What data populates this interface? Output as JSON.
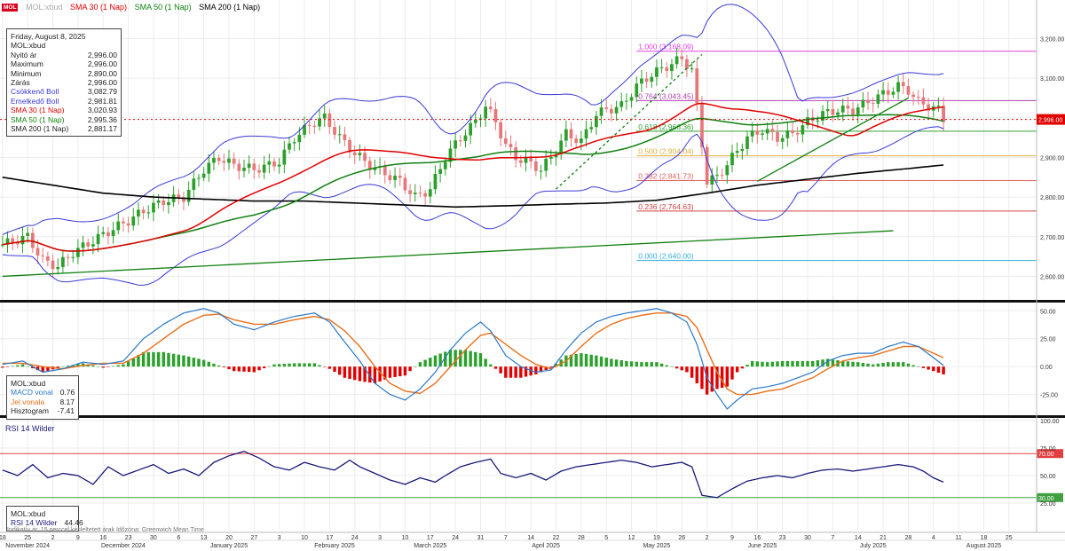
{
  "colors": {
    "up": "#2ca02c",
    "down": "#e8777a",
    "sma30": "#e00000",
    "sma50": "#108010",
    "sma200": "#000000",
    "bollinger": "#3a3ad8",
    "fibo": "#e040e0",
    "macd": "#2b78c8",
    "signal": "#e8701a",
    "rsi": "#1a1a7a",
    "rsi_upper": "#e34040",
    "rsi_lower": "#40a040",
    "price_tag": "#e00000"
  },
  "header": {
    "brand": "MOL",
    "title": "MOL:xbud",
    "legend": [
      {
        "label": "SMA 30 (1 Nap)",
        "color": "#e00000"
      },
      {
        "label": "SMA 50 (1 Nap)",
        "color": "#108010"
      },
      {
        "label": "SMA 200 (1 Nap)",
        "color": "#000000"
      }
    ]
  },
  "info_price": {
    "date": "Friday, August 8, 2025",
    "symbol": "MOL:xbud",
    "rows": [
      {
        "label": "Nyitó ár",
        "value": "2,996.00",
        "color": "#222222"
      },
      {
        "label": "Maximum",
        "value": "2,996.00",
        "color": "#222222"
      },
      {
        "label": "Minimum",
        "value": "2,890.00",
        "color": "#222222"
      },
      {
        "label": "Zárás",
        "value": "2,996.00",
        "color": "#222222"
      },
      {
        "label": "Csökkenő Boll",
        "value": "3,082.79",
        "color": "#3a3ad8"
      },
      {
        "label": "Emelkedő Boll",
        "value": "2,981.81",
        "color": "#3a3ad8"
      },
      {
        "label": "SMA 30 (1 Nap)",
        "value": "3,020.93",
        "color": "#e00000"
      },
      {
        "label": "SMA 50 (1 Nap)",
        "value": "2,995.36",
        "color": "#108010"
      },
      {
        "label": "SMA 200 (1 Nap)",
        "value": "2,881.17",
        "color": "#222222"
      }
    ]
  },
  "info_macd": {
    "symbol": "MOL:xbud",
    "rows": [
      {
        "label": "MACD vonal",
        "value": "0.76",
        "color": "#2b78c8"
      },
      {
        "label": "Jel vonala",
        "value": "8.17",
        "color": "#e8701a"
      },
      {
        "label": "Hisztogram",
        "value": "-7.41",
        "color": "#222222"
      }
    ]
  },
  "info_rsi": {
    "symbol": "MOL:xbud",
    "rows": [
      {
        "label": "RSI 14 Wilder",
        "value": "44.46",
        "color": "#1a1a7a"
      }
    ]
  },
  "rsi_title": "RSI 14 Wilder",
  "footer_note": "Indikatív ár. 15 perccel késleltetett árak  Időzóna: Greenwich Mean Time",
  "last_price_label": "2,996.00",
  "chart_data": {
    "type": "candlestick",
    "price_axis": {
      "ticks": [
        2600,
        2700,
        2800,
        2900,
        3000,
        3100,
        3200
      ],
      "labels": [
        "2,600.00",
        "2,700.00",
        "2,800.00",
        "2,900.00",
        "3,000.00",
        "3,100.00",
        "3,200.00"
      ],
      "range": [
        2545,
        3275
      ]
    },
    "macd_axis": {
      "ticks": [
        50,
        25,
        0,
        -25
      ],
      "labels": [
        "50.00",
        "25.00",
        "0.00",
        "-25.00"
      ],
      "range": [
        -42,
        55
      ]
    },
    "rsi_axis": {
      "ticks": [
        100,
        75,
        50,
        25
      ],
      "labels": [
        "100.00",
        "75.00",
        "50.00",
        "25.00"
      ],
      "range": [
        0,
        100
      ],
      "upper": 70,
      "lower": 30,
      "upper_label": "70.00",
      "lower_label": "30.00"
    },
    "fibonacci": [
      {
        "label": "1.000 (3,168.09)",
        "value": 3168.09,
        "color": "#e040e0"
      },
      {
        "label": "0.764 (3,043.45)",
        "value": 3043.45,
        "color": "#b040b0"
      },
      {
        "label": "0.618 (2,966.36)",
        "value": 2966.36,
        "color": "#30a030"
      },
      {
        "label": "0.500 (2,904.04)",
        "value": 2904.04,
        "color": "#e0b040"
      },
      {
        "label": "0.382 (2,841.73)",
        "value": 2841.73,
        "color": "#e06060"
      },
      {
        "label": "0.236 (2,764.63)",
        "value": 2764.63,
        "color": "#d04040"
      },
      {
        "label": "0.000 (2,640.00)",
        "value": 2640.0,
        "color": "#30b0e0"
      }
    ],
    "fib_start_index": 126,
    "x_axis": {
      "labels": [
        {
          "text": "18",
          "i": 0
        },
        {
          "text": "25",
          "i": 5
        },
        {
          "text": "2",
          "i": 10
        },
        {
          "text": "9",
          "i": 15
        },
        {
          "text": "16",
          "i": 20
        },
        {
          "text": "23",
          "i": 25
        },
        {
          "text": "30",
          "i": 30
        },
        {
          "text": "6",
          "i": 35
        },
        {
          "text": "13",
          "i": 40
        },
        {
          "text": "20",
          "i": 45
        },
        {
          "text": "27",
          "i": 50
        },
        {
          "text": "3",
          "i": 55
        },
        {
          "text": "10",
          "i": 60
        },
        {
          "text": "17",
          "i": 65
        },
        {
          "text": "24",
          "i": 70
        },
        {
          "text": "3",
          "i": 75
        },
        {
          "text": "10",
          "i": 80
        },
        {
          "text": "17",
          "i": 85
        },
        {
          "text": "24",
          "i": 90
        },
        {
          "text": "31",
          "i": 95
        },
        {
          "text": "7",
          "i": 100
        },
        {
          "text": "14",
          "i": 105
        },
        {
          "text": "22",
          "i": 110
        },
        {
          "text": "28",
          "i": 115
        },
        {
          "text": "5",
          "i": 120
        },
        {
          "text": "12",
          "i": 125
        },
        {
          "text": "19",
          "i": 130
        },
        {
          "text": "26",
          "i": 135
        },
        {
          "text": "2",
          "i": 140
        },
        {
          "text": "9",
          "i": 145
        },
        {
          "text": "16",
          "i": 150
        },
        {
          "text": "23",
          "i": 155
        },
        {
          "text": "30",
          "i": 160
        },
        {
          "text": "7",
          "i": 165
        },
        {
          "text": "14",
          "i": 170
        },
        {
          "text": "21",
          "i": 175
        },
        {
          "text": "28",
          "i": 180
        },
        {
          "text": "4",
          "i": 185
        },
        {
          "text": "11",
          "i": 190
        },
        {
          "text": "18",
          "i": 195
        },
        {
          "text": "25",
          "i": 200
        }
      ],
      "months": [
        {
          "text": "November 2024",
          "i": 5
        },
        {
          "text": "December 2024",
          "i": 24
        },
        {
          "text": "January 2025",
          "i": 45
        },
        {
          "text": "February 2025",
          "i": 66
        },
        {
          "text": "March 2025",
          "i": 85
        },
        {
          "text": "April 2025",
          "i": 108
        },
        {
          "text": "May 2025",
          "i": 130
        },
        {
          "text": "June 2025",
          "i": 151
        },
        {
          "text": "July 2025",
          "i": 173
        },
        {
          "text": "August 2025",
          "i": 195
        }
      ],
      "total_slots": 206
    },
    "price_path": [
      [
        0,
        2680
      ],
      [
        5,
        2700
      ],
      [
        8,
        2640
      ],
      [
        11,
        2625
      ],
      [
        14,
        2660
      ],
      [
        18,
        2690
      ],
      [
        22,
        2720
      ],
      [
        25,
        2740
      ],
      [
        28,
        2765
      ],
      [
        32,
        2790
      ],
      [
        36,
        2800
      ],
      [
        40,
        2870
      ],
      [
        43,
        2900
      ],
      [
        46,
        2880
      ],
      [
        50,
        2870
      ],
      [
        53,
        2880
      ],
      [
        55,
        2890
      ],
      [
        58,
        2950
      ],
      [
        62,
        2990
      ],
      [
        64,
        3000
      ],
      [
        67,
        2950
      ],
      [
        70,
        2910
      ],
      [
        73,
        2880
      ],
      [
        76,
        2860
      ],
      [
        79,
        2840
      ],
      [
        82,
        2800
      ],
      [
        85,
        2820
      ],
      [
        88,
        2900
      ],
      [
        91,
        2950
      ],
      [
        94,
        2990
      ],
      [
        96,
        3030
      ],
      [
        98,
        2990
      ],
      [
        100,
        2930
      ],
      [
        102,
        2900
      ],
      [
        104,
        2890
      ],
      [
        107,
        2870
      ],
      [
        109,
        2900
      ],
      [
        112,
        2960
      ],
      [
        115,
        2940
      ],
      [
        118,
        3010
      ],
      [
        120,
        3020
      ],
      [
        123,
        3030
      ],
      [
        126,
        3080
      ],
      [
        129,
        3110
      ],
      [
        132,
        3130
      ],
      [
        135,
        3150
      ],
      [
        137,
        3120
      ],
      [
        140,
        2840
      ],
      [
        142,
        2850
      ],
      [
        145,
        2900
      ],
      [
        148,
        2950
      ],
      [
        151,
        2970
      ],
      [
        154,
        2950
      ],
      [
        157,
        2960
      ],
      [
        160,
        2990
      ],
      [
        163,
        3010
      ],
      [
        166,
        3020
      ],
      [
        169,
        3020
      ],
      [
        172,
        3040
      ],
      [
        175,
        3060
      ],
      [
        178,
        3080
      ],
      [
        180,
        3070
      ],
      [
        182,
        3040
      ],
      [
        184,
        3030
      ],
      [
        186,
        3020
      ],
      [
        187,
        2996
      ]
    ],
    "macd_path": [
      [
        0,
        2
      ],
      [
        4,
        5
      ],
      [
        8,
        -5
      ],
      [
        12,
        -2
      ],
      [
        16,
        4
      ],
      [
        20,
        2
      ],
      [
        24,
        5
      ],
      [
        28,
        25
      ],
      [
        32,
        38
      ],
      [
        36,
        48
      ],
      [
        40,
        52
      ],
      [
        43,
        48
      ],
      [
        46,
        38
      ],
      [
        50,
        33
      ],
      [
        54,
        40
      ],
      [
        58,
        45
      ],
      [
        62,
        48
      ],
      [
        65,
        40
      ],
      [
        68,
        22
      ],
      [
        71,
        5
      ],
      [
        74,
        -15
      ],
      [
        77,
        -25
      ],
      [
        80,
        -30
      ],
      [
        83,
        -20
      ],
      [
        86,
        -5
      ],
      [
        89,
        15
      ],
      [
        92,
        30
      ],
      [
        95,
        40
      ],
      [
        97,
        32
      ],
      [
        100,
        10
      ],
      [
        103,
        0
      ],
      [
        106,
        -5
      ],
      [
        109,
        -3
      ],
      [
        112,
        15
      ],
      [
        115,
        30
      ],
      [
        118,
        40
      ],
      [
        121,
        45
      ],
      [
        124,
        48
      ],
      [
        127,
        50
      ],
      [
        130,
        52
      ],
      [
        133,
        48
      ],
      [
        136,
        40
      ],
      [
        138,
        20
      ],
      [
        140,
        -10
      ],
      [
        142,
        -25
      ],
      [
        144,
        -38
      ],
      [
        146,
        -30
      ],
      [
        149,
        -20
      ],
      [
        152,
        -18
      ],
      [
        155,
        -15
      ],
      [
        158,
        -10
      ],
      [
        161,
        -5
      ],
      [
        164,
        5
      ],
      [
        167,
        10
      ],
      [
        170,
        12
      ],
      [
        173,
        12
      ],
      [
        176,
        18
      ],
      [
        179,
        22
      ],
      [
        182,
        18
      ],
      [
        185,
        8
      ],
      [
        187,
        1
      ]
    ],
    "signal_path": [
      [
        0,
        3
      ],
      [
        4,
        3
      ],
      [
        8,
        0
      ],
      [
        12,
        -2
      ],
      [
        16,
        1
      ],
      [
        20,
        3
      ],
      [
        24,
        3
      ],
      [
        28,
        12
      ],
      [
        32,
        25
      ],
      [
        36,
        38
      ],
      [
        40,
        46
      ],
      [
        43,
        47
      ],
      [
        46,
        42
      ],
      [
        50,
        38
      ],
      [
        54,
        38
      ],
      [
        58,
        42
      ],
      [
        62,
        45
      ],
      [
        65,
        42
      ],
      [
        68,
        32
      ],
      [
        71,
        18
      ],
      [
        74,
        0
      ],
      [
        77,
        -15
      ],
      [
        80,
        -22
      ],
      [
        83,
        -24
      ],
      [
        86,
        -15
      ],
      [
        89,
        0
      ],
      [
        92,
        15
      ],
      [
        95,
        28
      ],
      [
        97,
        30
      ],
      [
        100,
        20
      ],
      [
        103,
        10
      ],
      [
        106,
        2
      ],
      [
        109,
        -2
      ],
      [
        112,
        5
      ],
      [
        115,
        18
      ],
      [
        118,
        30
      ],
      [
        121,
        38
      ],
      [
        124,
        43
      ],
      [
        127,
        46
      ],
      [
        130,
        48
      ],
      [
        133,
        48
      ],
      [
        136,
        45
      ],
      [
        138,
        35
      ],
      [
        140,
        15
      ],
      [
        142,
        -5
      ],
      [
        144,
        -20
      ],
      [
        146,
        -25
      ],
      [
        149,
        -25
      ],
      [
        152,
        -22
      ],
      [
        155,
        -20
      ],
      [
        158,
        -15
      ],
      [
        161,
        -10
      ],
      [
        164,
        -2
      ],
      [
        167,
        5
      ],
      [
        170,
        8
      ],
      [
        173,
        10
      ],
      [
        176,
        14
      ],
      [
        179,
        18
      ],
      [
        182,
        18
      ],
      [
        185,
        12
      ],
      [
        187,
        8
      ]
    ],
    "rsi_path": [
      [
        0,
        55
      ],
      [
        3,
        50
      ],
      [
        6,
        60
      ],
      [
        9,
        48
      ],
      [
        12,
        52
      ],
      [
        15,
        50
      ],
      [
        18,
        42
      ],
      [
        21,
        58
      ],
      [
        24,
        50
      ],
      [
        27,
        55
      ],
      [
        30,
        60
      ],
      [
        33,
        52
      ],
      [
        36,
        56
      ],
      [
        39,
        50
      ],
      [
        42,
        62
      ],
      [
        45,
        68
      ],
      [
        48,
        72
      ],
      [
        51,
        66
      ],
      [
        54,
        58
      ],
      [
        57,
        55
      ],
      [
        60,
        62
      ],
      [
        63,
        58
      ],
      [
        66,
        55
      ],
      [
        69,
        64
      ],
      [
        71,
        58
      ],
      [
        74,
        52
      ],
      [
        77,
        46
      ],
      [
        80,
        42
      ],
      [
        83,
        48
      ],
      [
        86,
        44
      ],
      [
        88,
        50
      ],
      [
        91,
        58
      ],
      [
        94,
        62
      ],
      [
        97,
        65
      ],
      [
        99,
        52
      ],
      [
        102,
        48
      ],
      [
        105,
        52
      ],
      [
        108,
        46
      ],
      [
        111,
        54
      ],
      [
        114,
        58
      ],
      [
        117,
        60
      ],
      [
        120,
        62
      ],
      [
        123,
        64
      ],
      [
        126,
        62
      ],
      [
        129,
        58
      ],
      [
        132,
        60
      ],
      [
        135,
        62
      ],
      [
        137,
        58
      ],
      [
        139,
        32
      ],
      [
        142,
        30
      ],
      [
        145,
        38
      ],
      [
        148,
        45
      ],
      [
        151,
        48
      ],
      [
        154,
        50
      ],
      [
        157,
        48
      ],
      [
        160,
        52
      ],
      [
        163,
        55
      ],
      [
        166,
        56
      ],
      [
        169,
        54
      ],
      [
        172,
        56
      ],
      [
        175,
        58
      ],
      [
        178,
        60
      ],
      [
        181,
        58
      ],
      [
        183,
        54
      ],
      [
        185,
        48
      ],
      [
        187,
        44
      ]
    ],
    "sma200_path": [
      [
        0,
        2850
      ],
      [
        10,
        2830
      ],
      [
        20,
        2810
      ],
      [
        30,
        2800
      ],
      [
        40,
        2795
      ],
      [
        50,
        2790
      ],
      [
        60,
        2790
      ],
      [
        70,
        2785
      ],
      [
        80,
        2780
      ],
      [
        90,
        2775
      ],
      [
        100,
        2778
      ],
      [
        110,
        2782
      ],
      [
        120,
        2785
      ],
      [
        130,
        2792
      ],
      [
        140,
        2810
      ],
      [
        150,
        2830
      ],
      [
        160,
        2845
      ],
      [
        170,
        2860
      ],
      [
        180,
        2872
      ],
      [
        187,
        2881
      ]
    ],
    "trendlines": [
      {
        "from": [
          0,
          2600
        ],
        "to": [
          177,
          2715
        ],
        "color": "#108010",
        "dashed": false
      },
      {
        "from": [
          150,
          2840
        ],
        "to": [
          180,
          3050
        ],
        "color": "#108010",
        "dashed": false
      },
      {
        "from": [
          110,
          2820
        ],
        "to": [
          139,
          3160
        ],
        "color": "#108010",
        "dashed": true
      }
    ]
  }
}
